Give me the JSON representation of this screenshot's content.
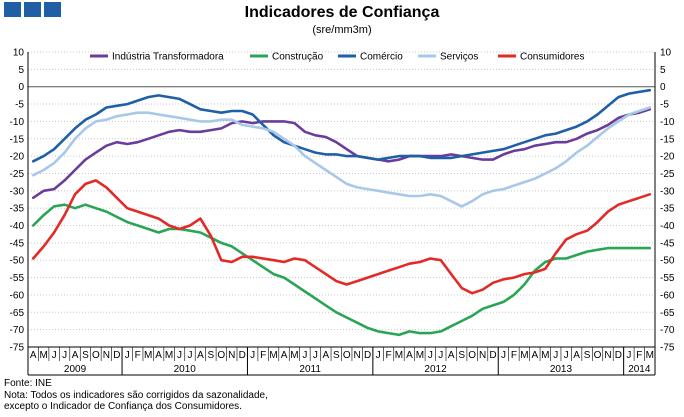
{
  "header": {
    "title": "Indicadores de Confiança",
    "subtitle": "(sre/mm3m)"
  },
  "footer": {
    "source": "Fonte: INE",
    "note_line1": "Nota: Todos os indicadores são corrigidos da sazonalidade,",
    "note_line2": "excepto o Indicador de Confiança dos Consumidores."
  },
  "chart_data": {
    "type": "line",
    "title": "Indicadores de Confiança",
    "subtitle": "(sre/mm3m)",
    "ylim": [
      -75,
      10
    ],
    "yticks": [
      10,
      5,
      0,
      -5,
      -10,
      -15,
      -20,
      -25,
      -30,
      -35,
      -40,
      -45,
      -50,
      -55,
      -60,
      -65,
      -70,
      -75
    ],
    "month_labels": [
      "A",
      "M",
      "J",
      "J",
      "A",
      "S",
      "O",
      "N",
      "D",
      "J",
      "F",
      "M",
      "A",
      "M",
      "J",
      "J",
      "A",
      "S",
      "O",
      "N",
      "D",
      "J",
      "F",
      "M",
      "A",
      "M",
      "J",
      "J",
      "A",
      "S",
      "O",
      "N",
      "D",
      "J",
      "F",
      "M",
      "A",
      "M",
      "J",
      "J",
      "A",
      "S",
      "O",
      "N",
      "D",
      "J",
      "F",
      "M",
      "A",
      "M",
      "J",
      "J",
      "A",
      "S",
      "O",
      "N",
      "D",
      "J",
      "F",
      "M"
    ],
    "year_labels": [
      {
        "label": "2009",
        "start": 0,
        "end": 8
      },
      {
        "label": "2010",
        "start": 9,
        "end": 20
      },
      {
        "label": "2011",
        "start": 21,
        "end": 32
      },
      {
        "label": "2012",
        "start": 33,
        "end": 44
      },
      {
        "label": "2013",
        "start": 45,
        "end": 56
      },
      {
        "label": "2014",
        "start": 57,
        "end": 59
      }
    ],
    "x_start": "2009-04",
    "x_end": "2014-03",
    "series": [
      {
        "name": "Indústria Transformadora",
        "color": "#6b3d9a",
        "values": [
          -32,
          -30,
          -29.5,
          -27,
          -24,
          -21,
          -19,
          -17,
          -16,
          -16.5,
          -16,
          -15,
          -14,
          -13,
          -12.5,
          -13,
          -13,
          -12.5,
          -12,
          -10.5,
          -10,
          -10.5,
          -10,
          -10,
          -10,
          -10.5,
          -13,
          -14,
          -14.5,
          -16,
          -18,
          -20,
          -20.5,
          -21,
          -21.5,
          -21,
          -20,
          -20,
          -20,
          -20,
          -19.5,
          -20,
          -20.5,
          -21,
          -21,
          -19.5,
          -18.5,
          -18,
          -17,
          -16.5,
          -16,
          -16,
          -15,
          -13.5,
          -12.5,
          -11,
          -9,
          -8,
          -7.5,
          -6.5
        ]
      },
      {
        "name": "Construção",
        "color": "#2aa556",
        "values": [
          -40,
          -37,
          -34.5,
          -34,
          -35,
          -34,
          -35,
          -36,
          -37.5,
          -39,
          -40,
          -41,
          -42,
          -41,
          -41,
          -41.5,
          -42,
          -43.5,
          -45,
          -46,
          -48,
          -50,
          -52,
          -54,
          -55,
          -57,
          -59,
          -61,
          -63,
          -65,
          -66.5,
          -68,
          -69.5,
          -70.5,
          -71,
          -71.5,
          -70.5,
          -71,
          -71,
          -70.5,
          -69,
          -67.5,
          -66,
          -64,
          -63,
          -62,
          -60,
          -57,
          -53,
          -50.5,
          -49.5,
          -49.5,
          -48.5,
          -47.5,
          -47,
          -46.5,
          -46.5,
          -46.5,
          -46.5,
          -46.5
        ]
      },
      {
        "name": "Comércio",
        "color": "#1f5fa6",
        "values": [
          -21.5,
          -20,
          -18,
          -15,
          -12,
          -9.5,
          -8,
          -6,
          -5.5,
          -5,
          -4,
          -3,
          -2.5,
          -3,
          -3.5,
          -5,
          -6.5,
          -7,
          -7.5,
          -7,
          -7,
          -8,
          -11,
          -14,
          -16,
          -17,
          -18,
          -19,
          -19.5,
          -19.5,
          -20,
          -20,
          -20.5,
          -21,
          -20.5,
          -20,
          -20,
          -20,
          -20.5,
          -20.5,
          -20.5,
          -20,
          -19.5,
          -19,
          -18.5,
          -18,
          -17,
          -16,
          -15,
          -14,
          -13.5,
          -12.5,
          -11.5,
          -10,
          -8,
          -5.5,
          -3,
          -2,
          -1.5,
          -1
        ]
      },
      {
        "name": "Serviços",
        "color": "#a8c8ea",
        "values": [
          -25.5,
          -24,
          -22,
          -19,
          -15,
          -12,
          -10,
          -9.5,
          -8.5,
          -8,
          -7.5,
          -7.5,
          -8,
          -8.5,
          -9,
          -9.5,
          -10,
          -10,
          -9.5,
          -9.5,
          -11,
          -11.5,
          -12,
          -13,
          -15,
          -17,
          -20,
          -22,
          -24,
          -26,
          -28,
          -29,
          -29.5,
          -30,
          -30.5,
          -31,
          -31.5,
          -31.5,
          -31,
          -31.5,
          -33,
          -34.5,
          -33,
          -31,
          -30,
          -29.5,
          -28.5,
          -27.5,
          -26.5,
          -25,
          -23.5,
          -21.5,
          -19,
          -17,
          -14.5,
          -12,
          -10,
          -8,
          -7,
          -6
        ]
      },
      {
        "name": "Consumidores",
        "color": "#e22a27",
        "values": [
          -49.5,
          -46,
          -42,
          -37,
          -31,
          -28,
          -27,
          -29,
          -32,
          -35,
          -36,
          -37,
          -38,
          -40,
          -41,
          -40,
          -38,
          -43,
          -50,
          -50.5,
          -49,
          -49,
          -49.5,
          -50,
          -50.5,
          -49.5,
          -50,
          -52,
          -54,
          -56,
          -57,
          -56,
          -55,
          -54,
          -53,
          -52,
          -51,
          -50.5,
          -49.5,
          -50,
          -54,
          -58,
          -59.5,
          -58.5,
          -56.5,
          -55.5,
          -55,
          -54,
          -53.5,
          -52.5,
          -48,
          -44,
          -42.5,
          -41.5,
          -39,
          -36,
          -34,
          -33,
          -32,
          -31
        ]
      }
    ]
  }
}
